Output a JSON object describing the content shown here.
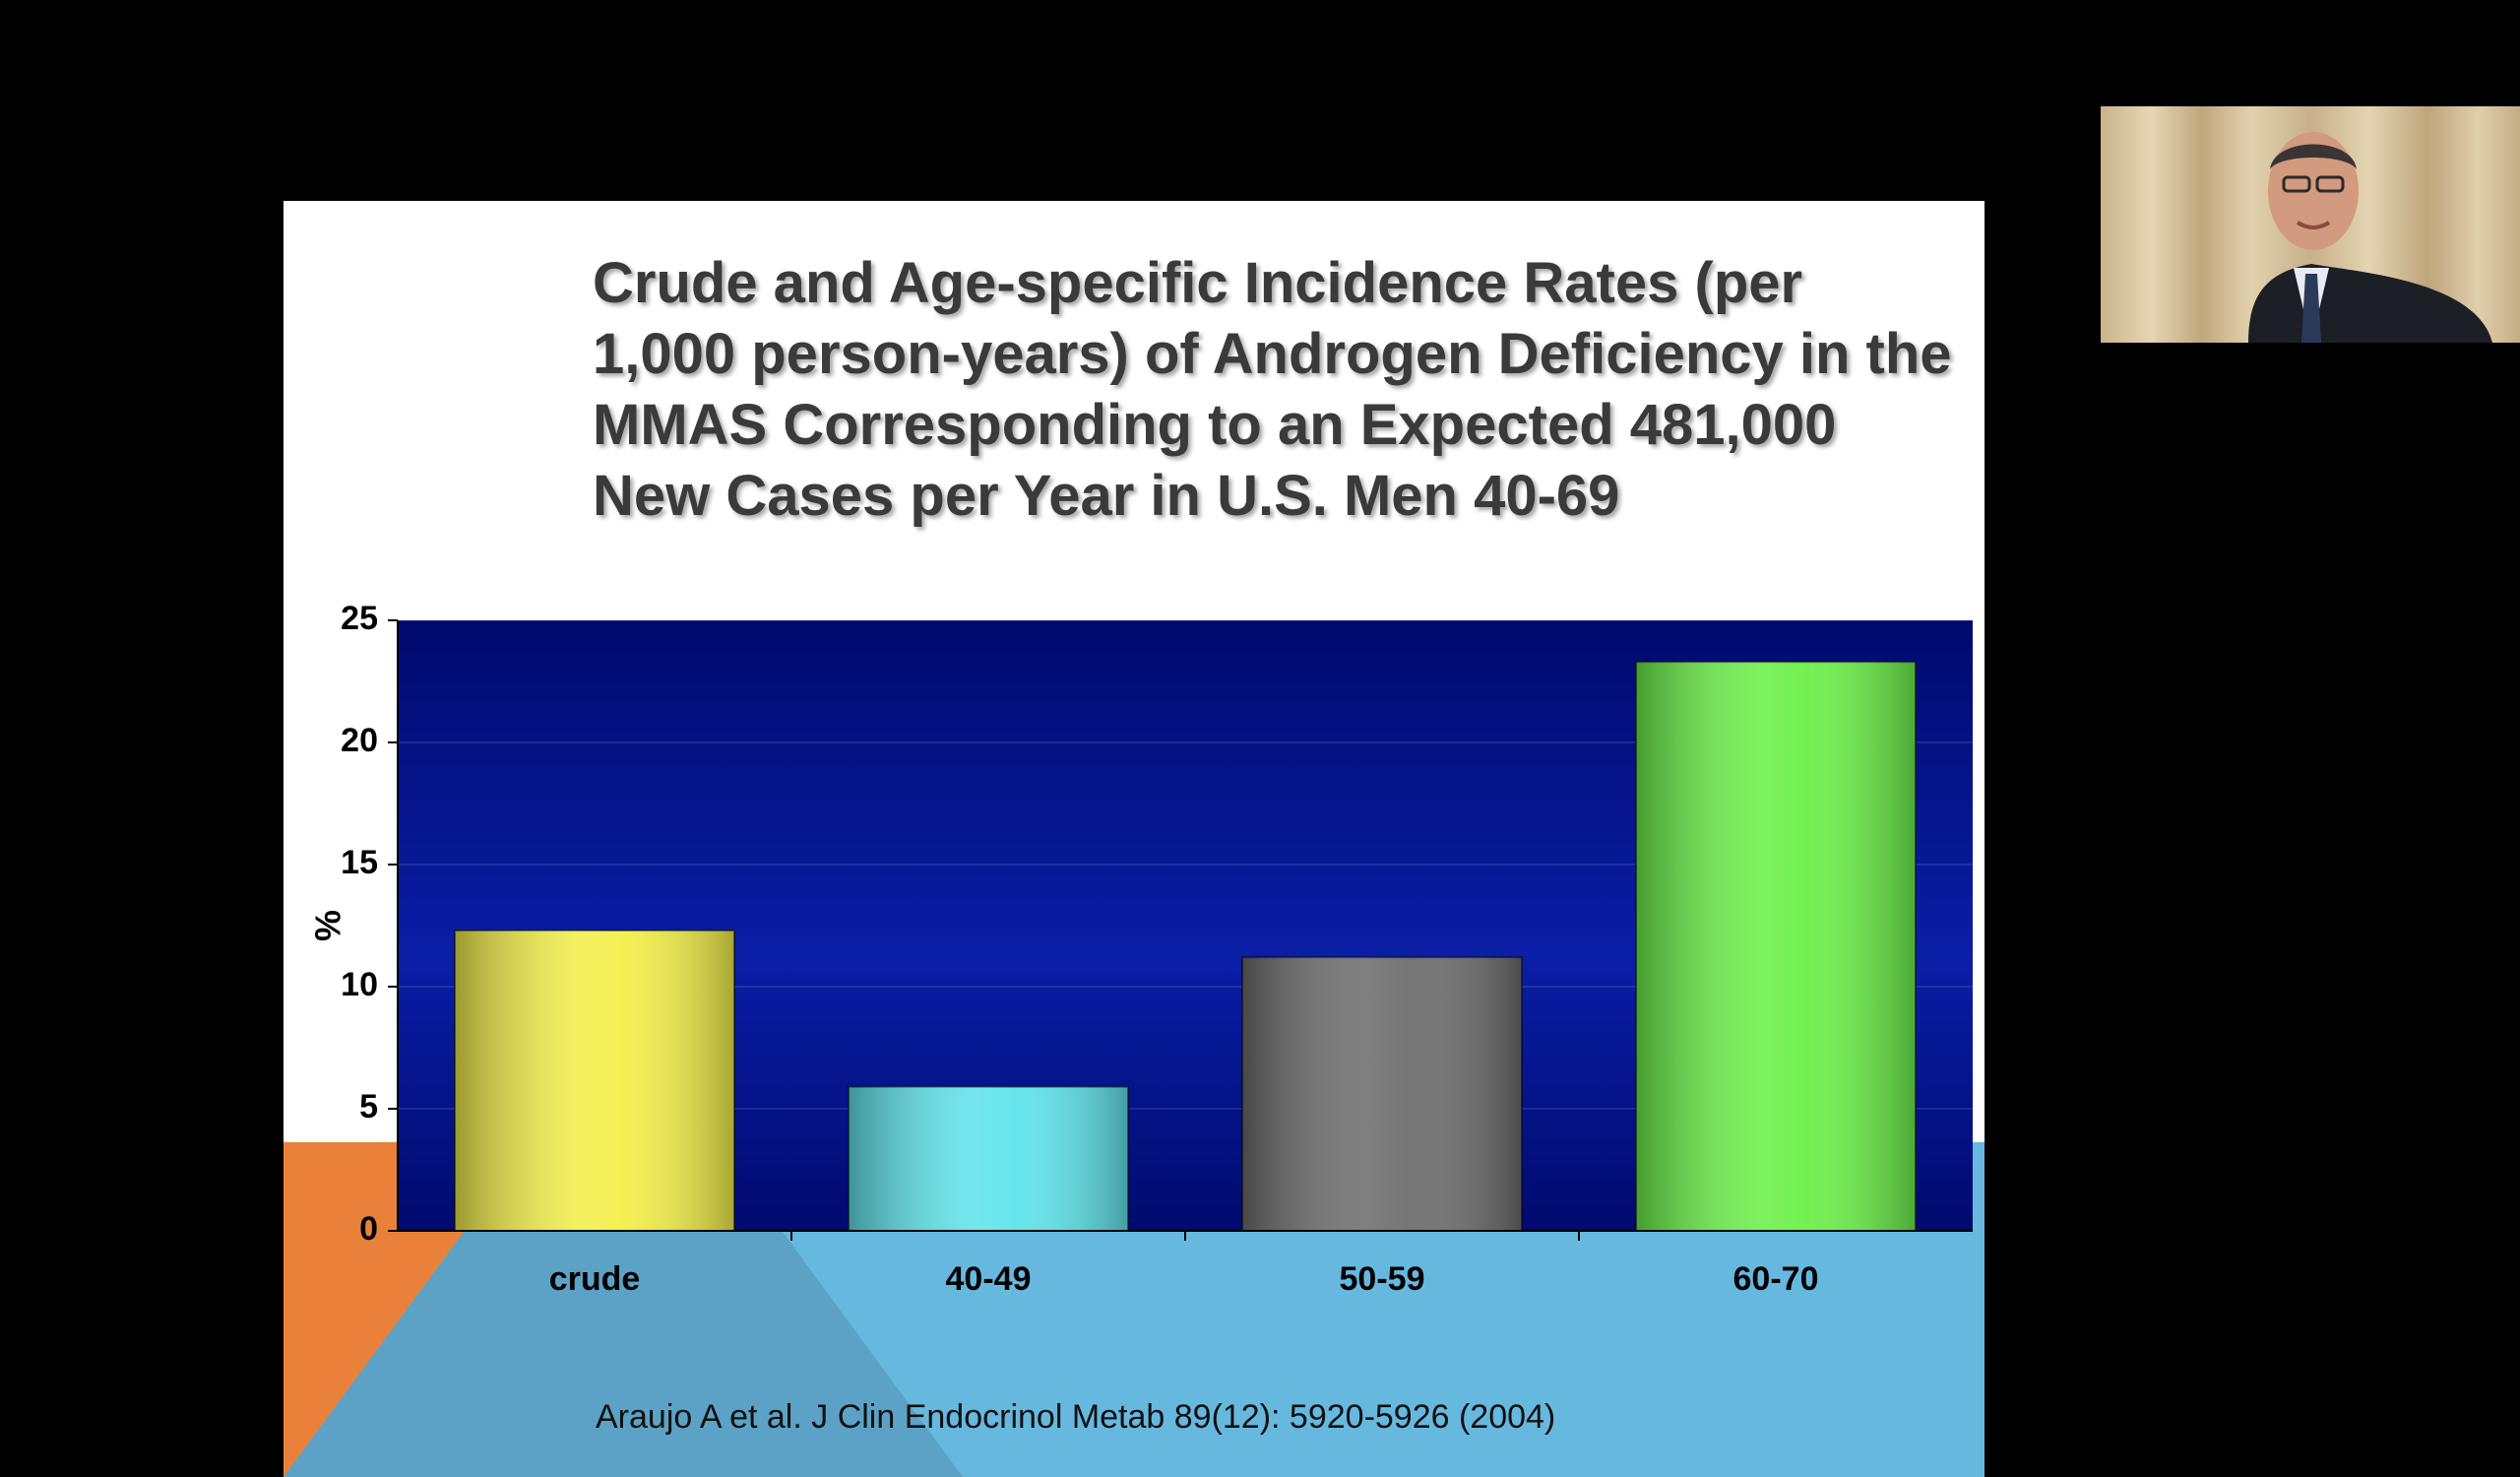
{
  "slide": {
    "title": "Crude and Age-specific Incidence Rates (per 1,000 person-years) of Androgen Deficiency in the MMAS Corresponding to an Expected 481,000 New Cases per Year in U.S. Men 40-69",
    "citation": "Araujo A et al. J Clin Endocrinol Metab 89(12): 5920-5926 (2004)",
    "colors": {
      "background": "#000000",
      "slide_bg": "#ffffff",
      "accent_orange": "#e9813a",
      "accent_blue": "#66b8df",
      "accent_dark_blue": "#5ba2c6"
    }
  },
  "chart_data": {
    "type": "bar",
    "title": "",
    "xlabel": "",
    "ylabel": "%",
    "ylim": [
      0,
      25
    ],
    "yticks": [
      0,
      5,
      10,
      15,
      20,
      25
    ],
    "categories": [
      "crude",
      "40-49",
      "50-59",
      "60-70"
    ],
    "values": [
      12.3,
      5.9,
      11.2,
      23.3
    ],
    "bar_colors": [
      "#f2ee4a",
      "#5fe3ea",
      "#6e6e6e",
      "#6cf04a"
    ],
    "plot_background": "#000a6e",
    "grid": true,
    "legend": "none"
  },
  "webcam": {
    "icon": "presenter-video-icon"
  }
}
